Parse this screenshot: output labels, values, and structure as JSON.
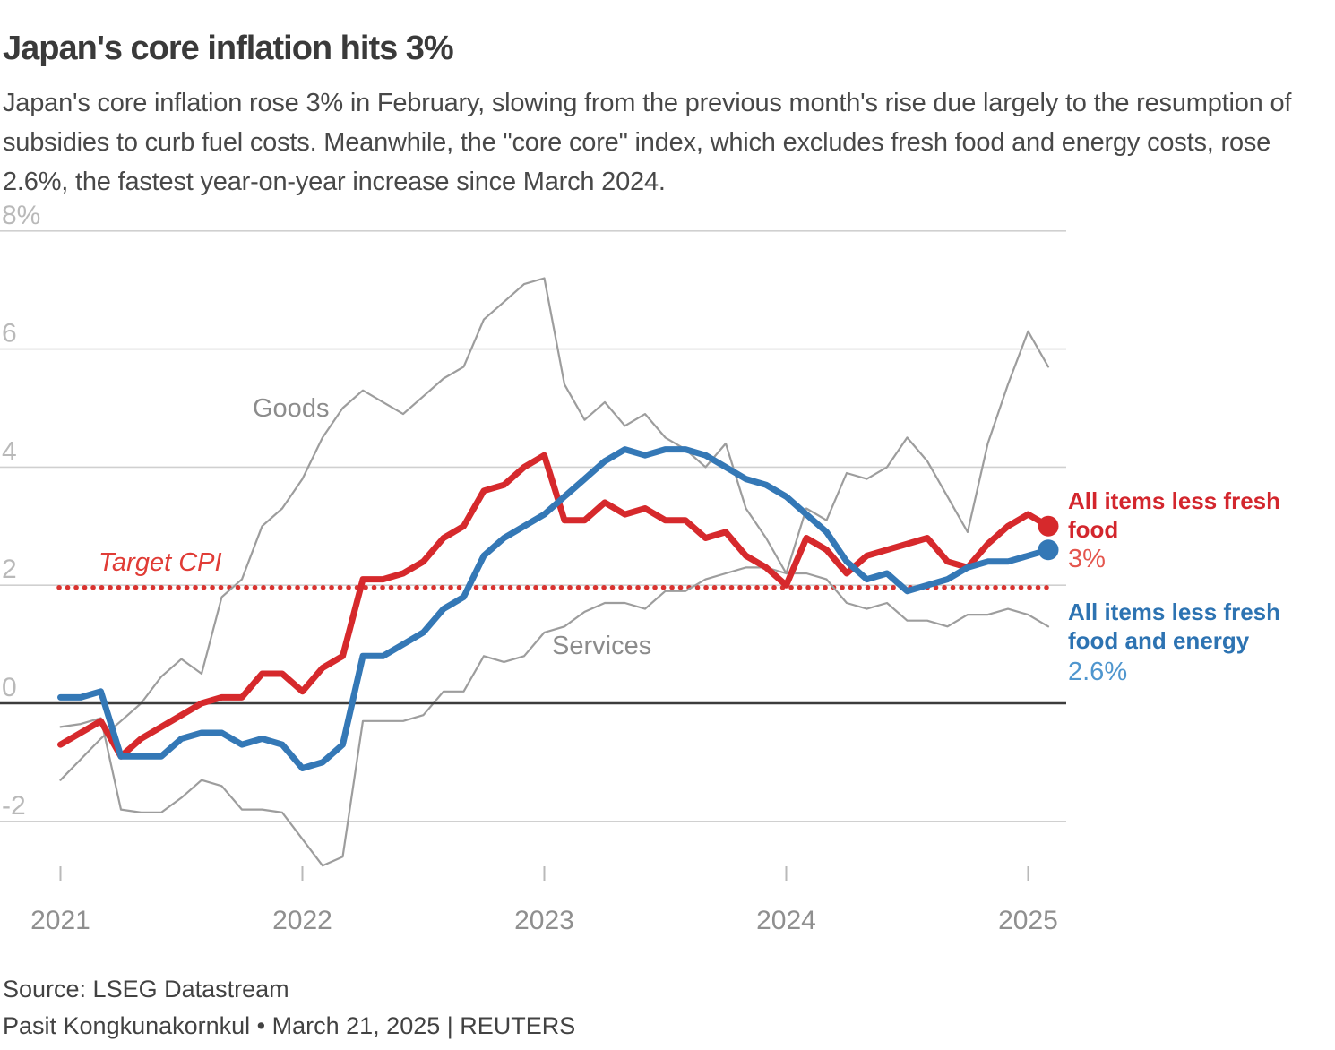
{
  "header": {
    "title": "Japan's core inflation hits 3%",
    "subtitle": "Japan's core inflation rose 3% in February, slowing from the previous month's rise due largely to the resumption of subsidies to curb fuel costs. Meanwhile, the \"core core\" index, which excludes fresh food and energy costs, rose 2.6%, the fastest year-on-year increase since March 2024."
  },
  "chart_data": {
    "type": "line",
    "title": "Japan's core inflation hits 3%",
    "x_unit": "month",
    "x_start": "2021-01",
    "x_end": "2025-02",
    "x_axis": {
      "ticks": [
        "2021",
        "2022",
        "2023",
        "2024",
        "2025"
      ]
    },
    "y_axis": {
      "unit": "percent year-on-year",
      "range": [
        -3,
        8.5
      ],
      "grid": true,
      "ticks": [
        {
          "value": 8,
          "label": "8%"
        },
        {
          "value": 6,
          "label": "6"
        },
        {
          "value": 4,
          "label": "4"
        },
        {
          "value": 2,
          "label": "2"
        },
        {
          "value": 0,
          "label": "0"
        },
        {
          "value": -2,
          "label": "-2"
        }
      ]
    },
    "target_line": {
      "label": "Target CPI",
      "value": 2,
      "color": "#d93330"
    },
    "legend_position": "right-end-of-lines",
    "series": [
      {
        "name": "Goods",
        "color": "#9d9d9d",
        "width": 2.2,
        "values": [
          -1.3,
          -0.95,
          -0.6,
          -0.3,
          0.0,
          0.45,
          0.75,
          0.5,
          1.8,
          2.1,
          3.0,
          3.3,
          3.8,
          4.5,
          5.0,
          5.3,
          5.1,
          4.9,
          5.2,
          5.5,
          5.7,
          6.5,
          6.8,
          7.1,
          7.2,
          5.4,
          4.8,
          5.1,
          4.7,
          4.9,
          4.5,
          4.3,
          4.0,
          4.4,
          3.3,
          2.8,
          2.2,
          3.3,
          3.1,
          3.9,
          3.8,
          4.0,
          4.5,
          4.1,
          3.5,
          2.9,
          4.4,
          5.4,
          6.3,
          5.7
        ]
      },
      {
        "name": "Services",
        "color": "#9d9d9d",
        "width": 2.2,
        "values": [
          -0.4,
          -0.35,
          -0.25,
          -1.8,
          -1.85,
          -1.85,
          -1.6,
          -1.3,
          -1.4,
          -1.8,
          -1.8,
          -1.85,
          -2.3,
          -2.75,
          -2.6,
          -0.3,
          -0.3,
          -0.3,
          -0.2,
          0.2,
          0.2,
          0.8,
          0.7,
          0.8,
          1.2,
          1.3,
          1.55,
          1.7,
          1.7,
          1.6,
          1.9,
          1.9,
          2.1,
          2.2,
          2.3,
          2.3,
          2.2,
          2.2,
          2.1,
          1.7,
          1.6,
          1.7,
          1.4,
          1.4,
          1.3,
          1.5,
          1.5,
          1.6,
          1.5,
          1.3
        ]
      },
      {
        "name": "All items less fresh food",
        "color": "#d6292c",
        "width": 7,
        "end_value": "3%",
        "values": [
          -0.7,
          -0.5,
          -0.3,
          -0.9,
          -0.6,
          -0.4,
          -0.2,
          0.0,
          0.1,
          0.1,
          0.5,
          0.5,
          0.2,
          0.6,
          0.8,
          2.1,
          2.1,
          2.2,
          2.4,
          2.8,
          3.0,
          3.6,
          3.7,
          4.0,
          4.2,
          3.1,
          3.1,
          3.4,
          3.2,
          3.3,
          3.1,
          3.1,
          2.8,
          2.9,
          2.5,
          2.3,
          2.0,
          2.8,
          2.6,
          2.2,
          2.5,
          2.6,
          2.7,
          2.8,
          2.4,
          2.3,
          2.7,
          3.0,
          3.2,
          3.0
        ]
      },
      {
        "name": "All items less fresh food and energy",
        "color": "#3478b6",
        "width": 7,
        "end_value": "2.6%",
        "values": [
          0.1,
          0.1,
          0.2,
          -0.9,
          -0.9,
          -0.9,
          -0.6,
          -0.5,
          -0.5,
          -0.7,
          -0.6,
          -0.7,
          -1.1,
          -1.0,
          -0.7,
          0.8,
          0.8,
          1.0,
          1.2,
          1.6,
          1.8,
          2.5,
          2.8,
          3.0,
          3.2,
          3.5,
          3.8,
          4.1,
          4.3,
          4.2,
          4.3,
          4.3,
          4.2,
          4.0,
          3.8,
          3.7,
          3.5,
          3.2,
          2.9,
          2.4,
          2.1,
          2.2,
          1.9,
          2.0,
          2.1,
          2.3,
          2.4,
          2.4,
          2.5,
          2.6
        ]
      }
    ]
  },
  "footer": {
    "source": "Source: LSEG Datastream",
    "byline": "Pasit Kongkunakornkul • March 21, 2025 | REUTERS"
  }
}
